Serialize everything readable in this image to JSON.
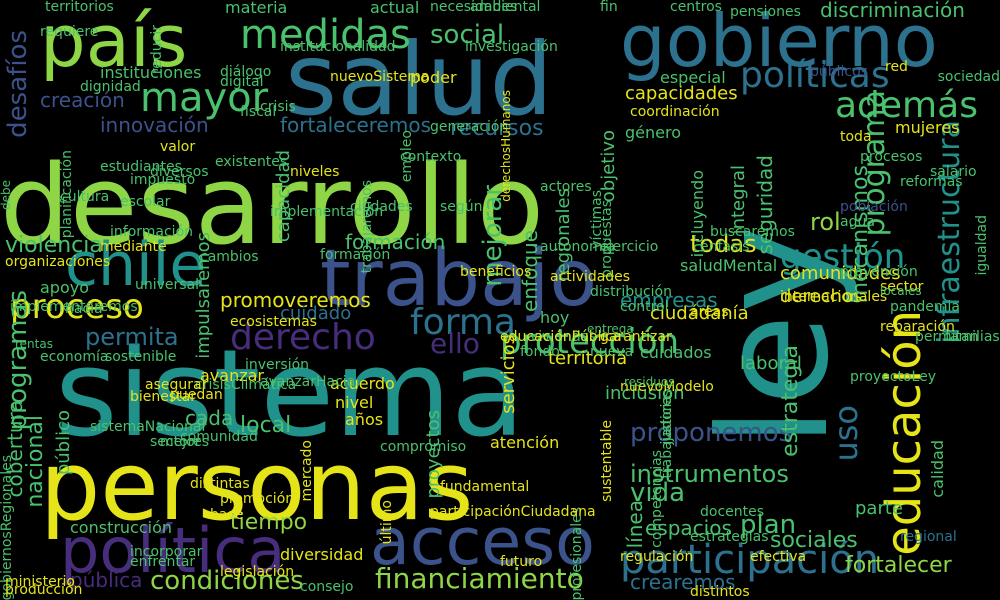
{
  "palette": {
    "background": "#000000",
    "yellow": "#e5e419",
    "lime": "#8ed645",
    "green": "#4ac16d",
    "teal": "#21918c",
    "blue": "#2c728e",
    "indigo": "#3b528b",
    "purple": "#472d7b",
    "violet": "#440154"
  },
  "words": [
    {
      "text": "desarrollo",
      "color": "lime"
    },
    {
      "text": "sistema",
      "color": "teal"
    },
    {
      "text": "ley",
      "color": "teal"
    },
    {
      "text": "salud",
      "color": "blue"
    },
    {
      "text": "personas",
      "color": "yellow"
    },
    {
      "text": "gobierno",
      "color": "blue"
    },
    {
      "text": "trabajo",
      "color": "indigo"
    },
    {
      "text": "chile",
      "color": "teal"
    },
    {
      "text": "país",
      "color": "lime"
    },
    {
      "text": "acceso",
      "color": "indigo"
    },
    {
      "text": "política",
      "color": "purple"
    },
    {
      "text": "educación",
      "color": "yellow"
    },
    {
      "text": "participación",
      "color": "blue"
    },
    {
      "text": "medidas",
      "color": "green"
    },
    {
      "text": "mayor",
      "color": "green"
    },
    {
      "text": "políticas",
      "color": "blue"
    },
    {
      "text": "además",
      "color": "green"
    },
    {
      "text": "gestión",
      "color": "teal"
    },
    {
      "text": "proceso",
      "color": "yellow"
    },
    {
      "text": "forma",
      "color": "blue"
    },
    {
      "text": "derecho",
      "color": "purple"
    },
    {
      "text": "protección",
      "color": "green"
    },
    {
      "text": "infraestructura",
      "color": "teal"
    },
    {
      "text": "programas",
      "color": "green"
    },
    {
      "text": "programa",
      "color": "green"
    },
    {
      "text": "financiamiento",
      "color": "lime"
    },
    {
      "text": "condiciones",
      "color": "lime"
    },
    {
      "text": "vida",
      "color": "green"
    },
    {
      "text": "plan",
      "color": "green"
    },
    {
      "text": "uso",
      "color": "blue"
    },
    {
      "text": "instrumentos",
      "color": "green"
    },
    {
      "text": "proponemos",
      "color": "indigo"
    },
    {
      "text": "social",
      "color": "green"
    },
    {
      "text": "discriminación",
      "color": "green"
    },
    {
      "text": "innovación",
      "color": "indigo"
    },
    {
      "text": "fortaleceremos",
      "color": "blue"
    },
    {
      "text": "recursos",
      "color": "blue"
    },
    {
      "text": "capacidades",
      "color": "yellow"
    },
    {
      "text": "desafíos",
      "color": "indigo"
    },
    {
      "text": "creación",
      "color": "indigo"
    },
    {
      "text": "violencia",
      "color": "green"
    },
    {
      "text": "formación",
      "color": "green"
    },
    {
      "text": "todas",
      "color": "yellow"
    },
    {
      "text": "comunidades",
      "color": "yellow"
    },
    {
      "text": "derechos",
      "color": "yellow"
    },
    {
      "text": "empresas",
      "color": "teal"
    },
    {
      "text": "promoveremos",
      "color": "yellow"
    },
    {
      "text": "permita",
      "color": "blue"
    },
    {
      "text": "ello",
      "color": "purple"
    },
    {
      "text": "cuidado",
      "color": "blue"
    },
    {
      "text": "espacios",
      "color": "green"
    },
    {
      "text": "fortalecer",
      "color": "lime"
    },
    {
      "text": "crearemos",
      "color": "blue"
    },
    {
      "text": "sociales",
      "color": "green"
    },
    {
      "text": "cobertura",
      "color": "green"
    },
    {
      "text": "nacional",
      "color": "green"
    },
    {
      "text": "público",
      "color": "green"
    },
    {
      "text": "pública",
      "color": "purple"
    },
    {
      "text": "mejorar",
      "color": "green"
    },
    {
      "text": "seguridad",
      "color": "green"
    },
    {
      "text": "integral",
      "color": "green"
    },
    {
      "text": "mecanismos",
      "color": "green"
    },
    {
      "text": "estrategia",
      "color": "green"
    },
    {
      "text": "territorios",
      "color": "green"
    },
    {
      "text": "materia",
      "color": "green"
    },
    {
      "text": "actual",
      "color": "green"
    },
    {
      "text": "instituciones",
      "color": "green"
    },
    {
      "text": "tiempo",
      "color": "lime"
    },
    {
      "text": "mujeres",
      "color": "yellow"
    },
    {
      "text": "rol",
      "color": "lime"
    },
    {
      "text": "ciudadanía",
      "color": "yellow"
    },
    {
      "text": "territoria",
      "color": "yellow"
    },
    {
      "text": "laboral",
      "color": "green"
    },
    {
      "text": "cuidados",
      "color": "green"
    },
    {
      "text": "apoyo",
      "color": "green"
    },
    {
      "text": "local",
      "color": "green"
    },
    {
      "text": "cada",
      "color": "green"
    },
    {
      "text": "acuerdo",
      "color": "yellow"
    },
    {
      "text": "nivel",
      "color": "yellow"
    },
    {
      "text": "años",
      "color": "yellow"
    },
    {
      "text": "avanzar",
      "color": "yellow"
    },
    {
      "text": "bienestar",
      "color": "yellow"
    },
    {
      "text": "puedan",
      "color": "yellow"
    },
    {
      "text": "atención",
      "color": "yellow"
    },
    {
      "text": "inclusión",
      "color": "green"
    },
    {
      "text": "parte",
      "color": "green"
    },
    {
      "text": "línea",
      "color": "green"
    },
    {
      "text": "hoy",
      "color": "green"
    },
    {
      "text": "diversidad",
      "color": "yellow"
    },
    {
      "text": "base",
      "color": "yellow"
    },
    {
      "text": "capacidad",
      "color": "green"
    },
    {
      "text": "impulsaremos",
      "color": "green"
    },
    {
      "text": "enfoque",
      "color": "green"
    },
    {
      "text": "regionales",
      "color": "green"
    },
    {
      "text": "objetivo",
      "color": "green"
    },
    {
      "text": "género",
      "color": "green"
    },
    {
      "text": "saludMental",
      "color": "green"
    },
    {
      "text": "gobiernosRegionales",
      "color": "green"
    },
    {
      "text": "construcción",
      "color": "green"
    },
    {
      "text": "servicios",
      "color": "yellow"
    },
    {
      "text": "proyectos",
      "color": "green"
    },
    {
      "text": "red",
      "color": "yellow"
    },
    {
      "text": "sociedad",
      "color": "green"
    },
    {
      "text": "especial",
      "color": "green"
    },
    {
      "text": "poder",
      "color": "yellow"
    },
    {
      "text": "calidad",
      "color": "green"
    },
    {
      "text": "incluyendo",
      "color": "green"
    },
    {
      "text": "coordinación",
      "color": "yellow"
    },
    {
      "text": "fin",
      "color": "green"
    },
    {
      "text": "centros",
      "color": "green"
    },
    {
      "text": "investigación",
      "color": "green"
    },
    {
      "text": "institucionalidad",
      "color": "green"
    },
    {
      "text": "nuevoSistema",
      "color": "yellow"
    },
    {
      "text": "niveles",
      "color": "yellow"
    },
    {
      "text": "formación",
      "color": "green"
    },
    {
      "text": "mediante",
      "color": "yellow"
    },
    {
      "text": "distintas",
      "color": "yellow"
    },
    {
      "text": "promoción",
      "color": "yellow"
    },
    {
      "text": "producción",
      "color": "yellow"
    },
    {
      "text": "ministerio",
      "color": "yellow"
    },
    {
      "text": "organizaciones",
      "color": "yellow"
    },
    {
      "text": "hacia",
      "color": "green"
    },
    {
      "text": "regional",
      "color": "blue"
    },
    {
      "text": "sector",
      "color": "yellow"
    },
    {
      "text": "áreas",
      "color": "yellow"
    },
    {
      "text": "garantizar",
      "color": "yellow"
    },
    {
      "text": "pandemia",
      "color": "green"
    },
    {
      "text": "familias",
      "color": "green"
    },
    {
      "text": "igualdad",
      "color": "green"
    },
    {
      "text": "población",
      "color": "indigo"
    },
    {
      "text": "sostenible",
      "color": "green"
    },
    {
      "text": "crisisClimática",
      "color": "green"
    },
    {
      "text": "asegurar",
      "color": "yellow"
    },
    {
      "text": "mejor",
      "color": "green"
    },
    {
      "text": "inversión",
      "color": "green"
    },
    {
      "text": "escolar",
      "color": "green"
    },
    {
      "text": "procesos",
      "color": "green"
    },
    {
      "text": "actores",
      "color": "green"
    },
    {
      "text": "según",
      "color": "green"
    },
    {
      "text": "empleo",
      "color": "green"
    },
    {
      "text": "públicos",
      "color": "indigo"
    },
    {
      "text": "estudiantes",
      "color": "green"
    },
    {
      "text": "pensiones",
      "color": "green"
    },
    {
      "text": "ambiental",
      "color": "green"
    },
    {
      "text": "necesidades",
      "color": "green"
    },
    {
      "text": "generación",
      "color": "green"
    },
    {
      "text": "derechosHumanos",
      "color": "yellow"
    },
    {
      "text": "trabajadores",
      "color": "green"
    },
    {
      "text": "víctimas",
      "color": "green"
    },
    {
      "text": "propuestas",
      "color": "green"
    },
    {
      "text": "información",
      "color": "green"
    },
    {
      "text": "ciudades",
      "color": "green"
    },
    {
      "text": "planificación",
      "color": "green"
    },
    {
      "text": "implementación",
      "color": "green"
    },
    {
      "text": "existentes",
      "color": "green"
    },
    {
      "text": "diversos",
      "color": "green"
    },
    {
      "text": "impuesto",
      "color": "green"
    },
    {
      "text": "reformas",
      "color": "green"
    },
    {
      "text": "salario",
      "color": "green"
    },
    {
      "text": "autonomía",
      "color": "green"
    },
    {
      "text": "ejercicio",
      "color": "green"
    },
    {
      "text": "énfasis",
      "color": "green"
    },
    {
      "text": "internacionales",
      "color": "yellow"
    },
    {
      "text": "mercado",
      "color": "yellow"
    },
    {
      "text": "profesionales",
      "color": "green"
    },
    {
      "text": "competencias",
      "color": "green"
    },
    {
      "text": "control",
      "color": "green"
    },
    {
      "text": "nueva",
      "color": "green"
    },
    {
      "text": "viviendas",
      "color": "green"
    },
    {
      "text": "educaciónPública",
      "color": "yellow"
    },
    {
      "text": "beneficios",
      "color": "yellow"
    },
    {
      "text": "universal",
      "color": "green"
    },
    {
      "text": "rentas",
      "color": "green"
    },
    {
      "text": "implementaremos",
      "color": "green"
    },
    {
      "text": "avanzarHacia",
      "color": "green"
    },
    {
      "text": "ecosistemas",
      "color": "yellow"
    },
    {
      "text": "actividades",
      "color": "yellow"
    },
    {
      "text": "fondo",
      "color": "green"
    },
    {
      "text": "sectores",
      "color": "green"
    },
    {
      "text": "comunidad",
      "color": "green"
    },
    {
      "text": "compromiso",
      "color": "green"
    },
    {
      "text": "último",
      "color": "yellow"
    },
    {
      "text": "justicia",
      "color": "green"
    },
    {
      "text": "estrategias",
      "color": "green"
    },
    {
      "text": "regulación",
      "color": "yellow"
    },
    {
      "text": "efectiva",
      "color": "yellow"
    },
    {
      "text": "distintos",
      "color": "yellow"
    },
    {
      "text": "docentes",
      "color": "green"
    },
    {
      "text": "fundamental",
      "color": "yellow"
    },
    {
      "text": "participaciónCiudadana",
      "color": "yellow"
    },
    {
      "text": "legislación",
      "color": "yellow"
    },
    {
      "text": "futuro",
      "color": "yellow"
    },
    {
      "text": "consejo",
      "color": "green"
    },
    {
      "text": "incorporar",
      "color": "green"
    },
    {
      "text": "enfrentar",
      "color": "green"
    },
    {
      "text": "economía",
      "color": "green"
    },
    {
      "text": "valor",
      "color": "yellow"
    },
    {
      "text": "requiere",
      "color": "green"
    },
    {
      "text": "dignidad",
      "color": "green"
    },
    {
      "text": "diálogo",
      "color": "green"
    },
    {
      "text": "digital",
      "color": "green"
    },
    {
      "text": "fiscal",
      "color": "green"
    },
    {
      "text": "crisis",
      "color": "green"
    },
    {
      "text": "cambios",
      "color": "green"
    },
    {
      "text": "reducir",
      "color": "green"
    },
    {
      "text": "debe",
      "color": "green"
    },
    {
      "text": "locales",
      "color": "green"
    },
    {
      "text": "contexto",
      "color": "green"
    },
    {
      "text": "sistemaNacional",
      "color": "green"
    },
    {
      "text": "trabajaremos",
      "color": "green"
    },
    {
      "text": "cultura",
      "color": "green"
    },
    {
      "text": "prevención",
      "color": "green"
    },
    {
      "text": "toda",
      "color": "yellow"
    },
    {
      "text": "agua",
      "color": "green"
    },
    {
      "text": "permitan",
      "color": "green"
    },
    {
      "text": "buscaremos",
      "color": "green"
    },
    {
      "text": "reparación",
      "color": "yellow"
    },
    {
      "text": "sustentable",
      "color": "yellow"
    },
    {
      "text": "distribución",
      "color": "green"
    },
    {
      "text": "nuevoModelo",
      "color": "yellow"
    },
    {
      "text": "proyectoLey",
      "color": "green"
    },
    {
      "text": "entrega",
      "color": "green"
    },
    {
      "text": "residuos",
      "color": "green"
    }
  ]
}
